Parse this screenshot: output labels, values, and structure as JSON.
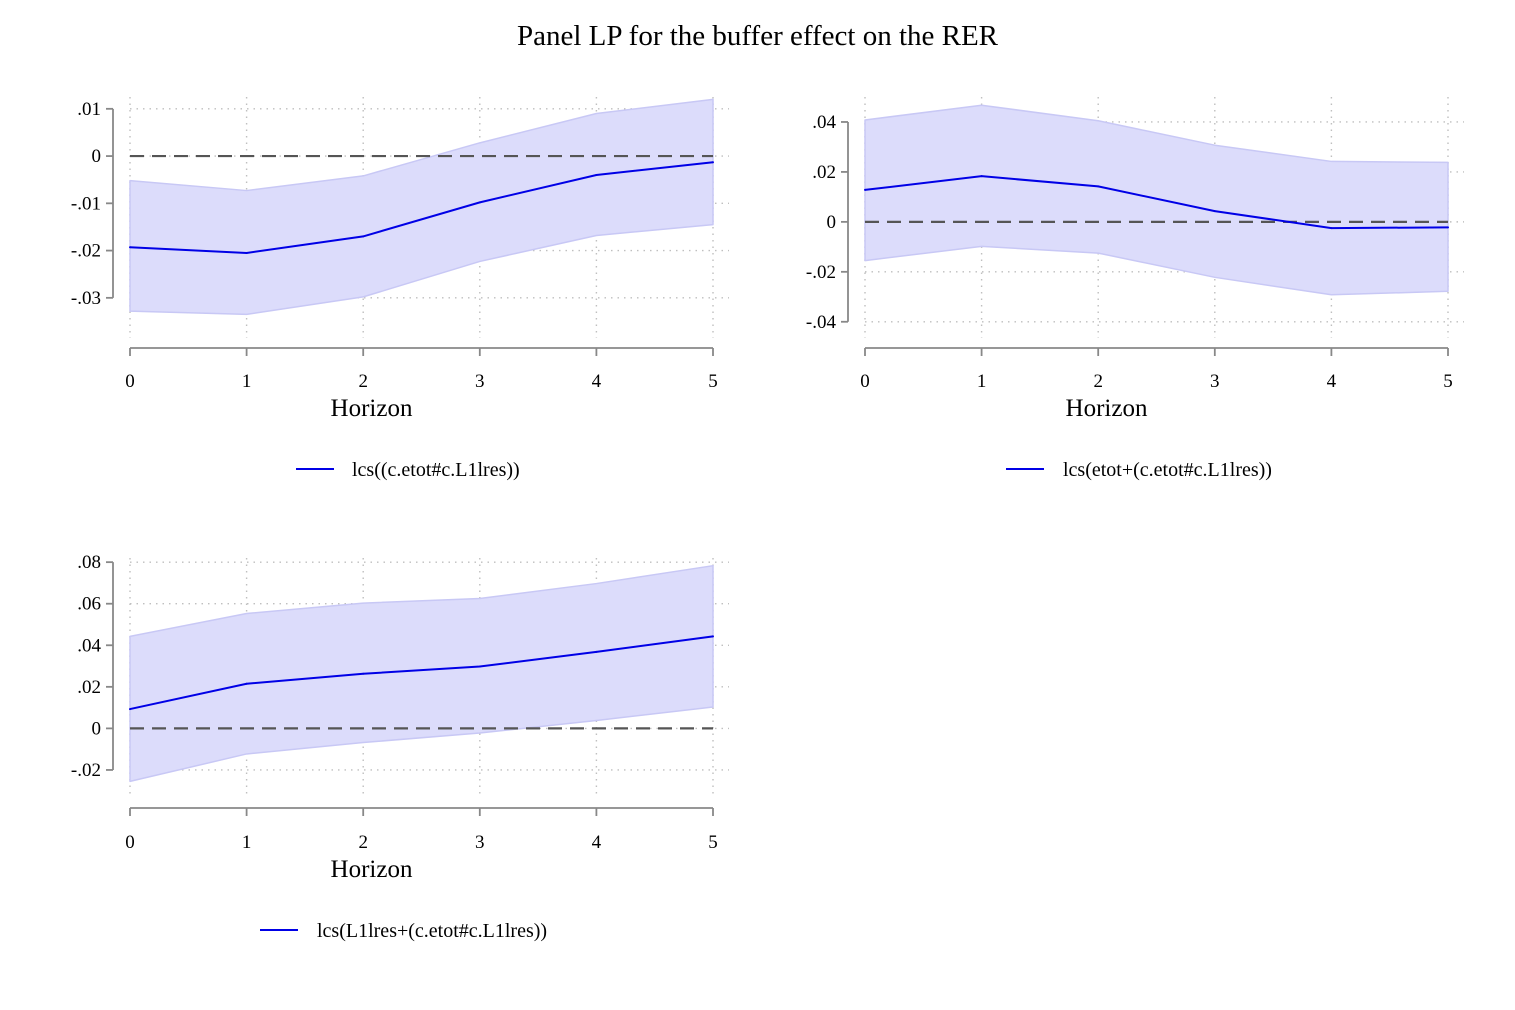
{
  "title": "Panel LP for the buffer effect on the RER",
  "colors": {
    "line": "#0000e6",
    "band": "#dcdcfb",
    "band_edge": "#c8c8f5",
    "zero_line": "#555555",
    "grid": "#bfbfbf",
    "axis": "#888888"
  },
  "chart_data": [
    {
      "type": "line",
      "xlabel": "Horizon",
      "ylabel": "",
      "x": [
        0,
        1,
        2,
        3,
        4,
        5
      ],
      "xticks": [
        "0",
        "1",
        "2",
        "3",
        "4",
        "5"
      ],
      "yticks": [
        0.01,
        0,
        -0.01,
        -0.02,
        -0.03
      ],
      "ytick_labels": [
        ".01",
        "0",
        "-.01",
        "-.02",
        "-.03"
      ],
      "ylim": [
        -0.0385,
        0.0125
      ],
      "grid": true,
      "zero_line": true,
      "legend_position": "bottom",
      "series": [
        {
          "name": "lcs((c.etot#c.L1lres))",
          "values": [
            -0.0193,
            -0.0205,
            -0.017,
            -0.0098,
            -0.004,
            -0.0013
          ],
          "lower": [
            -0.0328,
            -0.0335,
            -0.0298,
            -0.0223,
            -0.0168,
            -0.0145
          ],
          "upper": [
            -0.0052,
            -0.0073,
            -0.0042,
            0.0028,
            0.009,
            0.012
          ]
        }
      ]
    },
    {
      "type": "line",
      "xlabel": "Horizon",
      "ylabel": "",
      "x": [
        0,
        1,
        2,
        3,
        4,
        5
      ],
      "xticks": [
        "0",
        "1",
        "2",
        "3",
        "4",
        "5"
      ],
      "yticks": [
        0.04,
        0.02,
        0,
        -0.02,
        -0.04
      ],
      "ytick_labels": [
        ".04",
        ".02",
        "0",
        "-.02",
        "-.04"
      ],
      "ylim": [
        -0.0465,
        0.05
      ],
      "grid": true,
      "zero_line": true,
      "legend_position": "bottom",
      "series": [
        {
          "name": "lcs(etot+(c.etot#c.L1lres))",
          "values": [
            0.0128,
            0.0183,
            0.0142,
            0.0043,
            -0.0025,
            -0.0022
          ],
          "lower": [
            -0.0155,
            -0.0098,
            -0.0125,
            -0.0222,
            -0.0292,
            -0.0278
          ],
          "upper": [
            0.0408,
            0.0467,
            0.0405,
            0.0307,
            0.0242,
            0.0238
          ]
        }
      ]
    },
    {
      "type": "line",
      "xlabel": "Horizon",
      "ylabel": "",
      "x": [
        0,
        1,
        2,
        3,
        4,
        5
      ],
      "xticks": [
        "0",
        "1",
        "2",
        "3",
        "4",
        "5"
      ],
      "yticks": [
        0.08,
        0.06,
        0.04,
        0.02,
        0,
        -0.02
      ],
      "ytick_labels": [
        ".08",
        ".06",
        ".04",
        ".02",
        "0",
        "-.02"
      ],
      "ylim": [
        -0.0335,
        0.082
      ],
      "grid": true,
      "zero_line": true,
      "legend_position": "bottom",
      "series": [
        {
          "name": "lcs(L1lres+(c.etot#c.L1lres))",
          "values": [
            0.0093,
            0.0215,
            0.0263,
            0.0298,
            0.0368,
            0.0443
          ],
          "lower": [
            -0.0255,
            -0.0123,
            -0.0068,
            -0.0022,
            0.0038,
            0.0103
          ],
          "upper": [
            0.0443,
            0.0553,
            0.0603,
            0.0625,
            0.0697,
            0.0783
          ]
        }
      ]
    }
  ]
}
